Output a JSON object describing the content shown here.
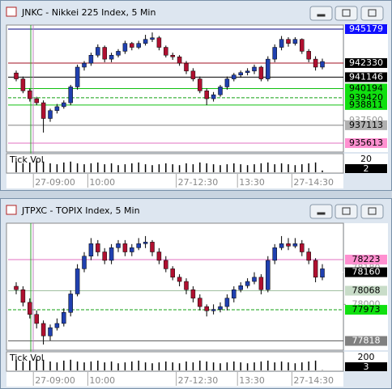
{
  "chart_data": [
    {
      "type": "candlestick",
      "title": "JNKC - Nikkei 225 Index, 5 Min",
      "up_color": "#2040b0",
      "down_color": "#b01030",
      "ylim": [
        935000,
        945450
      ],
      "yticks": [
        937500
      ],
      "levels": [
        {
          "value": 945179,
          "color": "#1010ff",
          "text_color": "#ffffff",
          "line": "#000080",
          "dash": false
        },
        {
          "value": 942330,
          "color": "#000000",
          "text_color": "#ffffff",
          "line": "#a01020",
          "dash": false
        },
        {
          "value": 941146,
          "color": "#000000",
          "text_color": "#ffffff",
          "line": "#000000",
          "dash": false
        },
        {
          "value": 940194,
          "color": "#10e010",
          "text_color": "#000000",
          "line": "#10c010",
          "dash": false
        },
        {
          "value": 939420,
          "color": "#10e010",
          "text_color": "#000000",
          "line": "#10a010",
          "dash": true
        },
        {
          "value": 938811,
          "color": "#10e010",
          "text_color": "#000000",
          "line": "#10c010",
          "dash": false
        },
        {
          "value": 937113,
          "color": "#b0b0b0",
          "text_color": "#000000",
          "line": "#808080",
          "dash": false
        },
        {
          "value": 935613,
          "color": "#ff90d0",
          "text_color": "#000000",
          "line": "#e070c0",
          "dash": false
        }
      ],
      "categories": [
        null,
        null,
        null,
        "27-09:00",
        null,
        null,
        null,
        null,
        null,
        null,
        null,
        "10:00",
        null,
        null,
        null,
        null,
        null,
        null,
        null,
        null,
        null,
        null,
        null,
        null,
        "27-12:30",
        null,
        null,
        null,
        null,
        null,
        null,
        null,
        null,
        "13:30",
        null,
        null,
        null,
        null,
        null,
        null,
        null,
        "27-14:30",
        null,
        null,
        null,
        null
      ],
      "candles": [
        [
          941500,
          941700,
          940800,
          941000
        ],
        [
          941000,
          941200,
          939800,
          940000
        ],
        [
          940000,
          940200,
          939100,
          939340
        ],
        [
          939340,
          939500,
          938800,
          939000
        ],
        [
          939000,
          939200,
          936500,
          937680
        ],
        [
          937680,
          938500,
          937400,
          938340
        ],
        [
          938340,
          938900,
          938100,
          938670
        ],
        [
          938670,
          939200,
          938500,
          939000
        ],
        [
          939000,
          940500,
          938800,
          940330
        ],
        [
          940330,
          942200,
          940100,
          941990
        ],
        [
          941990,
          942500,
          941700,
          942320
        ],
        [
          942320,
          943200,
          942100,
          942990
        ],
        [
          942990,
          943900,
          942800,
          943650
        ],
        [
          943650,
          943800,
          942400,
          942660
        ],
        [
          942660,
          943200,
          942400,
          942990
        ],
        [
          942990,
          943500,
          942800,
          943320
        ],
        [
          943320,
          944200,
          943100,
          943980
        ],
        [
          943980,
          944100,
          943400,
          943650
        ],
        [
          943650,
          944200,
          943500,
          943980
        ],
        [
          943980,
          944700,
          943800,
          944320
        ],
        [
          944320,
          944900,
          944100,
          944450
        ],
        [
          944450,
          944600,
          943400,
          943650
        ],
        [
          943650,
          943800,
          942800,
          942990
        ],
        [
          942990,
          943200,
          942600,
          942850
        ],
        [
          942850,
          943000,
          942100,
          942320
        ],
        [
          942320,
          942500,
          941400,
          941660
        ],
        [
          941660,
          941900,
          940800,
          941000
        ],
        [
          941000,
          941200,
          939800,
          940000
        ],
        [
          940000,
          940200,
          938800,
          939340
        ],
        [
          939340,
          939900,
          939100,
          939670
        ],
        [
          939670,
          940500,
          939500,
          940330
        ],
        [
          940330,
          941200,
          940100,
          941000
        ],
        [
          941000,
          941500,
          940800,
          941330
        ],
        [
          941330,
          941700,
          941100,
          941530
        ],
        [
          941530,
          941900,
          941300,
          941660
        ],
        [
          941660,
          942200,
          941400,
          941990
        ],
        [
          941990,
          942100,
          940800,
          941000
        ],
        [
          941000,
          942900,
          940800,
          942660
        ],
        [
          942660,
          943900,
          942400,
          943650
        ],
        [
          943650,
          944600,
          943400,
          944320
        ],
        [
          944320,
          944500,
          943700,
          943980
        ],
        [
          943980,
          944500,
          943800,
          944320
        ],
        [
          944320,
          944400,
          943100,
          943320
        ],
        [
          943320,
          943500,
          942400,
          942660
        ],
        [
          942660,
          942900,
          941700,
          941990
        ],
        [
          941990,
          942700,
          941800,
          942460
        ]
      ],
      "volume_label": "Tick Vol",
      "vol_ylim": [
        0,
        20
      ],
      "vol_yticks": [
        20
      ],
      "volume": [
        12,
        10,
        11,
        13,
        12,
        10,
        9,
        11,
        12,
        10,
        9,
        10,
        11,
        9,
        10,
        8,
        9,
        10,
        11,
        9,
        8,
        9,
        10,
        9,
        8,
        10,
        9,
        11,
        10,
        9,
        8,
        9,
        10,
        9,
        8,
        9,
        10,
        11,
        9,
        10,
        9,
        8,
        9,
        10,
        11,
        2
      ]
    },
    {
      "type": "candlestick",
      "title": "JTPXC - TOPIX Index, 5 Min",
      "up_color": "#2040b0",
      "down_color": "#b01030",
      "ylim": [
        77780,
        78400
      ],
      "yticks": [
        78180,
        78000
      ],
      "levels": [
        {
          "value": 78223,
          "color": "#ff90d0",
          "text_color": "#000000",
          "line": "#e070c0",
          "dash": false
        },
        {
          "value": 78160,
          "color": "#000000",
          "text_color": "#ffffff",
          "line": "#ffffff",
          "dash": false
        },
        {
          "value": 78068,
          "color": "#c8dcc8",
          "text_color": "#000000",
          "line": "#a0c0a0",
          "dash": false
        },
        {
          "value": 77973,
          "color": "#10e010",
          "text_color": "#000000",
          "line": "#10a010",
          "dash": true
        },
        {
          "value": 77818,
          "color": "#808080",
          "text_color": "#ffffff",
          "line": "#606060",
          "dash": false
        }
      ],
      "categories": [
        null,
        null,
        null,
        "27-09:00",
        null,
        null,
        null,
        null,
        null,
        null,
        null,
        "10:00",
        null,
        null,
        null,
        null,
        null,
        null,
        null,
        null,
        null,
        null,
        null,
        null,
        "27-12:30",
        null,
        null,
        null,
        null,
        null,
        null,
        null,
        null,
        "13:30",
        null,
        null,
        null,
        null,
        null,
        null,
        null,
        "27-14:30",
        null,
        null,
        null,
        null
      ],
      "candles": [
        [
          78090,
          78110,
          78050,
          78073
        ],
        [
          78073,
          78090,
          77990,
          78010
        ],
        [
          78010,
          78030,
          77930,
          77950
        ],
        [
          77950,
          77970,
          77880,
          77905
        ],
        [
          77905,
          77920,
          77800,
          77843
        ],
        [
          77843,
          77900,
          77820,
          77884
        ],
        [
          77884,
          77930,
          77870,
          77905
        ],
        [
          77905,
          77980,
          77890,
          77960
        ],
        [
          77960,
          78070,
          77940,
          78052
        ],
        [
          78052,
          78200,
          78040,
          78177
        ],
        [
          78177,
          78260,
          78160,
          78240
        ],
        [
          78240,
          78330,
          78220,
          78302
        ],
        [
          78302,
          78320,
          78240,
          78261
        ],
        [
          78261,
          78280,
          78200,
          78219
        ],
        [
          78219,
          78300,
          78200,
          78282
        ],
        [
          78282,
          78320,
          78260,
          78302
        ],
        [
          78302,
          78320,
          78240,
          78261
        ],
        [
          78261,
          78300,
          78240,
          78282
        ],
        [
          78282,
          78330,
          78270,
          78302
        ],
        [
          78302,
          78340,
          78280,
          78310
        ],
        [
          78310,
          78320,
          78240,
          78261
        ],
        [
          78261,
          78280,
          78200,
          78219
        ],
        [
          78219,
          78240,
          78160,
          78177
        ],
        [
          78177,
          78190,
          78120,
          78135
        ],
        [
          78135,
          78150,
          78090,
          78114
        ],
        [
          78114,
          78130,
          78050,
          78073
        ],
        [
          78073,
          78090,
          78010,
          78031
        ],
        [
          78031,
          78050,
          77970,
          77989
        ],
        [
          77989,
          78000,
          77940,
          77968
        ],
        [
          77968,
          78000,
          77950,
          77975
        ],
        [
          77975,
          78010,
          77960,
          77989
        ],
        [
          77989,
          78050,
          77970,
          78031
        ],
        [
          78031,
          78090,
          78010,
          78073
        ],
        [
          78073,
          78110,
          78060,
          78093
        ],
        [
          78093,
          78130,
          78080,
          78114
        ],
        [
          78114,
          78160,
          78100,
          78135
        ],
        [
          78135,
          78150,
          78050,
          78073
        ],
        [
          78073,
          78240,
          78060,
          78219
        ],
        [
          78219,
          78300,
          78200,
          78282
        ],
        [
          78282,
          78340,
          78270,
          78302
        ],
        [
          78302,
          78330,
          78270,
          78290
        ],
        [
          78290,
          78330,
          78280,
          78302
        ],
        [
          78302,
          78320,
          78240,
          78261
        ],
        [
          78261,
          78280,
          78200,
          78219
        ],
        [
          78219,
          78230,
          78110,
          78135
        ],
        [
          78135,
          78200,
          78120,
          78177
        ]
      ],
      "volume_label": "Tick Vol",
      "vol_ylim": [
        0,
        200
      ],
      "vol_yticks": [
        200
      ],
      "volume": [
        120,
        100,
        110,
        130,
        120,
        100,
        90,
        110,
        120,
        100,
        90,
        100,
        110,
        90,
        100,
        80,
        90,
        100,
        110,
        90,
        80,
        90,
        100,
        90,
        80,
        100,
        90,
        110,
        100,
        90,
        80,
        90,
        100,
        90,
        80,
        90,
        100,
        110,
        90,
        100,
        90,
        80,
        90,
        100,
        110,
        3
      ]
    }
  ]
}
